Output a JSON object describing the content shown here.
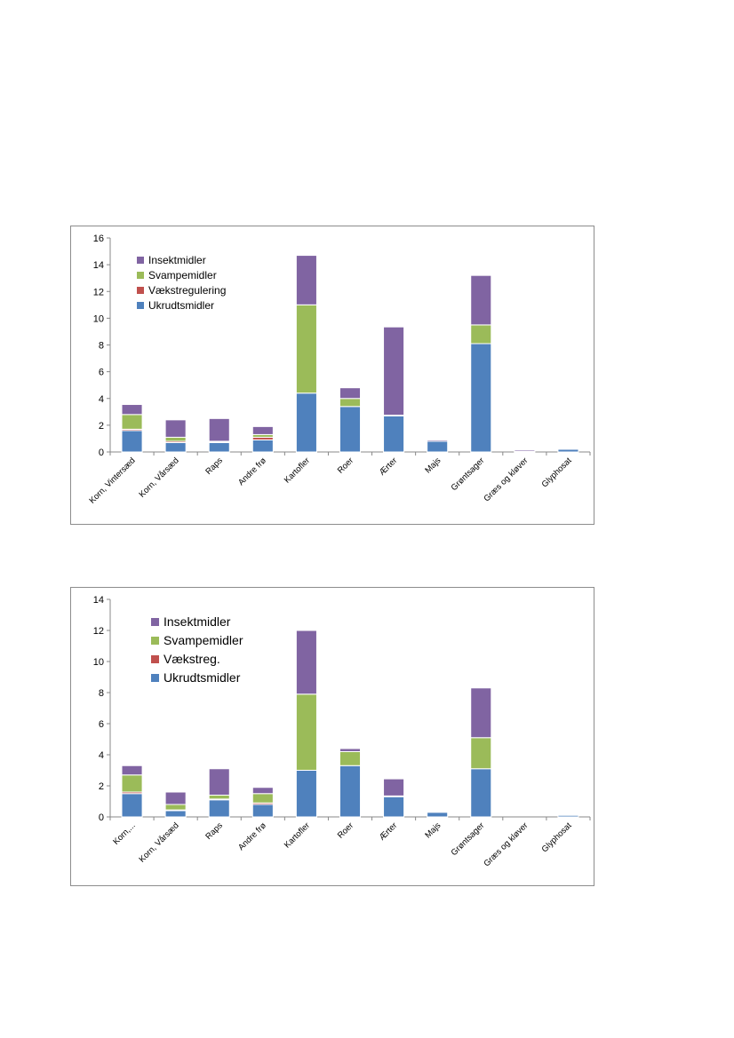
{
  "colors": {
    "Insektmidler": "#8064a2",
    "Svampemidler": "#9bbb59",
    "Vækstregulering": "#c0504d",
    "Ukrudtsmidler": "#4f81bd"
  },
  "chart_data": [
    {
      "type": "bar",
      "stacked": true,
      "categories": [
        "Korn, Vintersæd",
        "Korn, Vårsæd",
        "Raps",
        "Andre frø",
        "Kartofler",
        "Roer",
        "Ærter",
        "Majs",
        "Grøntsager",
        "Græs og kløver",
        "Glyphosat"
      ],
      "series": [
        {
          "name": "Ukrudtsmidler",
          "color": "#4f81bd",
          "values": [
            1.6,
            0.7,
            0.7,
            0.9,
            4.4,
            3.4,
            2.7,
            0.8,
            8.1,
            0.05,
            0.2
          ]
        },
        {
          "name": "Vækstregulering",
          "color": "#c0504d",
          "values": [
            0.1,
            0.1,
            0.05,
            0.2,
            0,
            0,
            0,
            0,
            0,
            0,
            0
          ]
        },
        {
          "name": "Svampemidler",
          "color": "#9bbb59",
          "values": [
            1.1,
            0.3,
            0.05,
            0.2,
            6.6,
            0.6,
            0.05,
            0,
            1.4,
            0,
            0
          ]
        },
        {
          "name": "Insektmidler",
          "color": "#8064a2",
          "values": [
            0.75,
            1.3,
            1.7,
            0.6,
            3.7,
            0.8,
            6.6,
            0.1,
            3.7,
            0.1,
            0
          ]
        }
      ],
      "ylim": [
        0,
        16
      ],
      "yticks": [
        0,
        2,
        4,
        6,
        8,
        10,
        12,
        14,
        16
      ],
      "legend_order": [
        "Insektmidler",
        "Svampemidler",
        "Vækstregulering",
        "Ukrudtsmidler"
      ],
      "legend_placement": "top-left",
      "grid": false,
      "title": "",
      "xlabel": "",
      "ylabel": ""
    },
    {
      "type": "bar",
      "stacked": true,
      "categories": [
        "Korn,...",
        "Korn, Vårsæd",
        "Raps",
        "Andre frø",
        "Kartofler",
        "Roer",
        "Ærter",
        "Majs",
        "Grøntsager",
        "Græs og kløver",
        "Glyphosat"
      ],
      "series": [
        {
          "name": "Ukrudtsmidler",
          "color": "#4f81bd",
          "values": [
            1.5,
            0.4,
            1.1,
            0.8,
            3.0,
            3.3,
            1.3,
            0.3,
            3.1,
            0,
            0.1
          ]
        },
        {
          "name": "Vækstreg.",
          "color": "#c0504d",
          "values": [
            0.1,
            0.05,
            0.05,
            0.1,
            0,
            0,
            0,
            0,
            0,
            0,
            0
          ]
        },
        {
          "name": "Svampemidler",
          "color": "#9bbb59",
          "values": [
            1.1,
            0.35,
            0.25,
            0.6,
            4.9,
            0.9,
            0.05,
            0.05,
            2.0,
            0,
            0
          ]
        },
        {
          "name": "Insektmidler",
          "color": "#8064a2",
          "values": [
            0.6,
            0.8,
            1.7,
            0.4,
            4.1,
            0.2,
            1.1,
            0,
            3.2,
            0,
            0
          ]
        }
      ],
      "ylim": [
        0,
        14
      ],
      "yticks": [
        0,
        2,
        4,
        6,
        8,
        10,
        12,
        14
      ],
      "legend_order": [
        "Insektmidler",
        "Svampemidler",
        "Vækstreg.",
        "Ukrudtsmidler"
      ],
      "legend_placement": "top-left",
      "grid": false,
      "title": "",
      "xlabel": "",
      "ylabel": ""
    }
  ]
}
